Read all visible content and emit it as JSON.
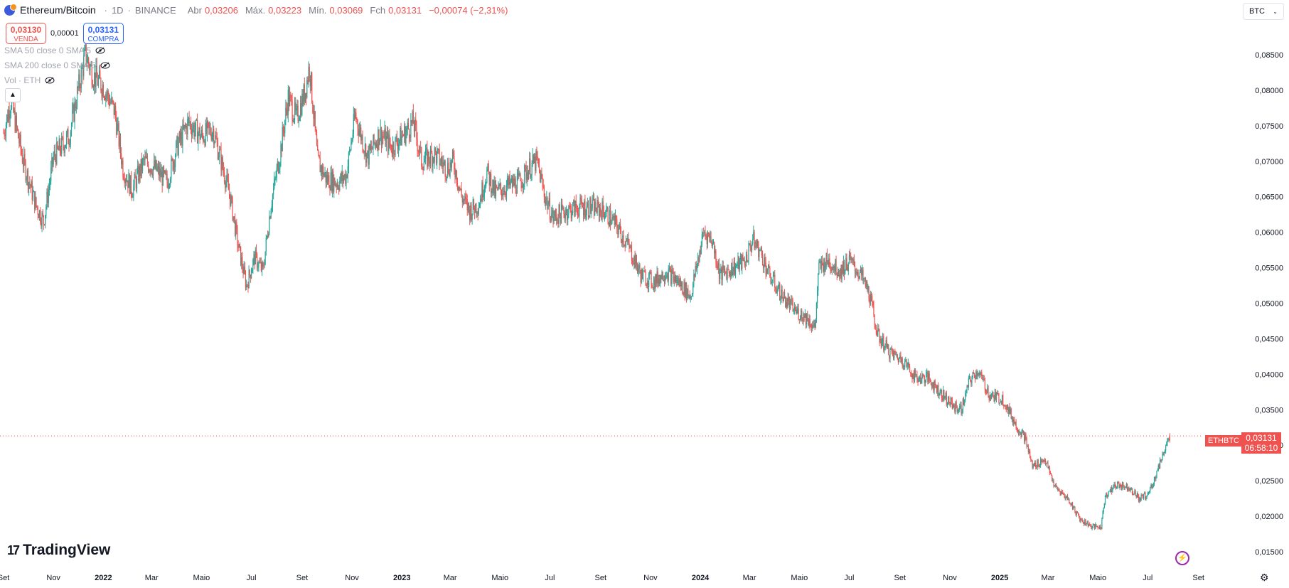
{
  "header": {
    "symbol_icon": "eth-btc-icon",
    "title": "Ethereum/Bitcoin",
    "interval": "1D",
    "exchange": "BINANCE",
    "ohlc": {
      "open_label": "Abr",
      "open": "0,03206",
      "high_label": "Máx.",
      "high": "0,03223",
      "low_label": "Mín.",
      "low": "0,03069",
      "close_label": "Fch",
      "close": "0,03131",
      "change": "−0,00074 (−2,31%)"
    }
  },
  "trade": {
    "sell_price": "0,03130",
    "sell_label": "VENDA",
    "spread": "0,00001",
    "buy_price": "0,03131",
    "buy_label": "COMPRA"
  },
  "indicators": [
    {
      "label": "SMA 50 close 0 SMA 5"
    },
    {
      "label": "SMA 200 close 0 SMA 5"
    },
    {
      "label": "Vol · ETH"
    }
  ],
  "currency_select": "BTC",
  "last_price": {
    "symbol": "ETHBTC",
    "price": "0,03131",
    "countdown": "06:58:10"
  },
  "brand": "TradingView",
  "colors": {
    "up": "#26a69a",
    "down": "#ef5350",
    "grid_text": "#131722",
    "accent": "#2962ff"
  },
  "chart_data": {
    "type": "candlestick",
    "title": "Ethereum/Bitcoin · 1D · BINANCE",
    "y_ticks": [
      "0,08500",
      "0,08000",
      "0,07500",
      "0,07000",
      "0,06500",
      "0,06000",
      "0,05500",
      "0,05000",
      "0,04500",
      "0,04000",
      "0,03500",
      "0,03000",
      "0,02500",
      "0,02000",
      "0,01500"
    ],
    "x_ticks": [
      "Set",
      "Nov",
      "2022",
      "Mar",
      "Maio",
      "Jul",
      "Set",
      "Nov",
      "2023",
      "Mar",
      "Maio",
      "Jul",
      "Set",
      "Nov",
      "2024",
      "Mar",
      "Maio",
      "Jul",
      "Set",
      "Nov",
      "2025",
      "Mar",
      "Maio",
      "Jul",
      "Set"
    ],
    "ylim": [
      0.0144,
      0.0875
    ],
    "x_range": [
      "2021-09-01",
      "2025-09-30"
    ],
    "grid": false,
    "last_close": 0.03131,
    "close_path": [
      {
        "date": "2021-09-01",
        "close": 0.074
      },
      {
        "date": "2021-09-10",
        "close": 0.0785
      },
      {
        "date": "2021-09-25",
        "close": 0.07
      },
      {
        "date": "2021-10-10",
        "close": 0.064
      },
      {
        "date": "2021-10-20",
        "close": 0.0615
      },
      {
        "date": "2021-11-01",
        "close": 0.0705
      },
      {
        "date": "2021-11-20",
        "close": 0.0735
      },
      {
        "date": "2021-12-01",
        "close": 0.08
      },
      {
        "date": "2021-12-10",
        "close": 0.085
      },
      {
        "date": "2021-12-20",
        "close": 0.082
      },
      {
        "date": "2022-01-01",
        "close": 0.0805
      },
      {
        "date": "2022-01-15",
        "close": 0.077
      },
      {
        "date": "2022-01-25",
        "close": 0.069
      },
      {
        "date": "2022-02-05",
        "close": 0.066
      },
      {
        "date": "2022-02-20",
        "close": 0.07
      },
      {
        "date": "2022-03-05",
        "close": 0.069
      },
      {
        "date": "2022-03-20",
        "close": 0.067
      },
      {
        "date": "2022-04-01",
        "close": 0.072
      },
      {
        "date": "2022-04-15",
        "close": 0.0755
      },
      {
        "date": "2022-05-01",
        "close": 0.0735
      },
      {
        "date": "2022-05-15",
        "close": 0.0745
      },
      {
        "date": "2022-05-25",
        "close": 0.07
      },
      {
        "date": "2022-06-05",
        "close": 0.065
      },
      {
        "date": "2022-06-15",
        "close": 0.058
      },
      {
        "date": "2022-06-25",
        "close": 0.0525
      },
      {
        "date": "2022-07-05",
        "close": 0.0565
      },
      {
        "date": "2022-07-15",
        "close": 0.0545
      },
      {
        "date": "2022-07-25",
        "close": 0.064
      },
      {
        "date": "2022-08-05",
        "close": 0.071
      },
      {
        "date": "2022-08-15",
        "close": 0.079
      },
      {
        "date": "2022-08-25",
        "close": 0.076
      },
      {
        "date": "2022-09-05",
        "close": 0.08
      },
      {
        "date": "2022-09-10",
        "close": 0.0835
      },
      {
        "date": "2022-09-20",
        "close": 0.07
      },
      {
        "date": "2022-10-01",
        "close": 0.0675
      },
      {
        "date": "2022-10-15",
        "close": 0.067
      },
      {
        "date": "2022-10-25",
        "close": 0.068
      },
      {
        "date": "2022-11-05",
        "close": 0.0765
      },
      {
        "date": "2022-11-20",
        "close": 0.0705
      },
      {
        "date": "2022-12-05",
        "close": 0.074
      },
      {
        "date": "2022-12-20",
        "close": 0.072
      },
      {
        "date": "2023-01-05",
        "close": 0.074
      },
      {
        "date": "2023-01-15",
        "close": 0.0755
      },
      {
        "date": "2023-01-25",
        "close": 0.07
      },
      {
        "date": "2023-02-10",
        "close": 0.071
      },
      {
        "date": "2023-02-25",
        "close": 0.069
      },
      {
        "date": "2023-03-05",
        "close": 0.07
      },
      {
        "date": "2023-03-15",
        "close": 0.065
      },
      {
        "date": "2023-03-25",
        "close": 0.063
      },
      {
        "date": "2023-04-05",
        "close": 0.064
      },
      {
        "date": "2023-04-15",
        "close": 0.0685
      },
      {
        "date": "2023-04-25",
        "close": 0.0655
      },
      {
        "date": "2023-05-10",
        "close": 0.0665
      },
      {
        "date": "2023-05-25",
        "close": 0.067
      },
      {
        "date": "2023-06-05",
        "close": 0.069
      },
      {
        "date": "2023-06-15",
        "close": 0.07
      },
      {
        "date": "2023-06-25",
        "close": 0.065
      },
      {
        "date": "2023-07-05",
        "close": 0.062
      },
      {
        "date": "2023-07-20",
        "close": 0.063
      },
      {
        "date": "2023-08-05",
        "close": 0.0635
      },
      {
        "date": "2023-08-20",
        "close": 0.0635
      },
      {
        "date": "2023-09-05",
        "close": 0.063
      },
      {
        "date": "2023-09-20",
        "close": 0.061
      },
      {
        "date": "2023-10-05",
        "close": 0.058
      },
      {
        "date": "2023-10-20",
        "close": 0.054
      },
      {
        "date": "2023-11-05",
        "close": 0.053
      },
      {
        "date": "2023-11-20",
        "close": 0.0545
      },
      {
        "date": "2023-12-05",
        "close": 0.053
      },
      {
        "date": "2023-12-20",
        "close": 0.051
      },
      {
        "date": "2024-01-05",
        "close": 0.06
      },
      {
        "date": "2024-01-15",
        "close": 0.059
      },
      {
        "date": "2024-01-25",
        "close": 0.054
      },
      {
        "date": "2024-02-10",
        "close": 0.055
      },
      {
        "date": "2024-02-25",
        "close": 0.056
      },
      {
        "date": "2024-03-05",
        "close": 0.059
      },
      {
        "date": "2024-03-15",
        "close": 0.057
      },
      {
        "date": "2024-03-25",
        "close": 0.054
      },
      {
        "date": "2024-04-10",
        "close": 0.051
      },
      {
        "date": "2024-04-25",
        "close": 0.049
      },
      {
        "date": "2024-05-10",
        "close": 0.048
      },
      {
        "date": "2024-05-20",
        "close": 0.0465
      },
      {
        "date": "2024-05-25",
        "close": 0.055
      },
      {
        "date": "2024-06-05",
        "close": 0.056
      },
      {
        "date": "2024-06-20",
        "close": 0.0545
      },
      {
        "date": "2024-07-01",
        "close": 0.056
      },
      {
        "date": "2024-07-15",
        "close": 0.054
      },
      {
        "date": "2024-07-25",
        "close": 0.0515
      },
      {
        "date": "2024-08-05",
        "close": 0.0455
      },
      {
        "date": "2024-08-20",
        "close": 0.043
      },
      {
        "date": "2024-09-05",
        "close": 0.042
      },
      {
        "date": "2024-09-20",
        "close": 0.0395
      },
      {
        "date": "2024-10-05",
        "close": 0.0395
      },
      {
        "date": "2024-10-20",
        "close": 0.0375
      },
      {
        "date": "2024-11-05",
        "close": 0.0355
      },
      {
        "date": "2024-11-15",
        "close": 0.035
      },
      {
        "date": "2024-11-25",
        "close": 0.039
      },
      {
        "date": "2024-12-05",
        "close": 0.0405
      },
      {
        "date": "2024-12-20",
        "close": 0.037
      },
      {
        "date": "2025-01-05",
        "close": 0.0365
      },
      {
        "date": "2025-01-20",
        "close": 0.033
      },
      {
        "date": "2025-02-01",
        "close": 0.031
      },
      {
        "date": "2025-02-10",
        "close": 0.027
      },
      {
        "date": "2025-02-25",
        "close": 0.028
      },
      {
        "date": "2025-03-10",
        "close": 0.024
      },
      {
        "date": "2025-03-25",
        "close": 0.0225
      },
      {
        "date": "2025-04-10",
        "close": 0.0195
      },
      {
        "date": "2025-04-25",
        "close": 0.0185
      },
      {
        "date": "2025-05-05",
        "close": 0.0185
      },
      {
        "date": "2025-05-10",
        "close": 0.023
      },
      {
        "date": "2025-05-25",
        "close": 0.0245
      },
      {
        "date": "2025-06-10",
        "close": 0.024
      },
      {
        "date": "2025-06-20",
        "close": 0.0225
      },
      {
        "date": "2025-07-01",
        "close": 0.023
      },
      {
        "date": "2025-07-10",
        "close": 0.0255
      },
      {
        "date": "2025-07-20",
        "close": 0.029
      },
      {
        "date": "2025-07-28",
        "close": 0.03131
      }
    ]
  }
}
